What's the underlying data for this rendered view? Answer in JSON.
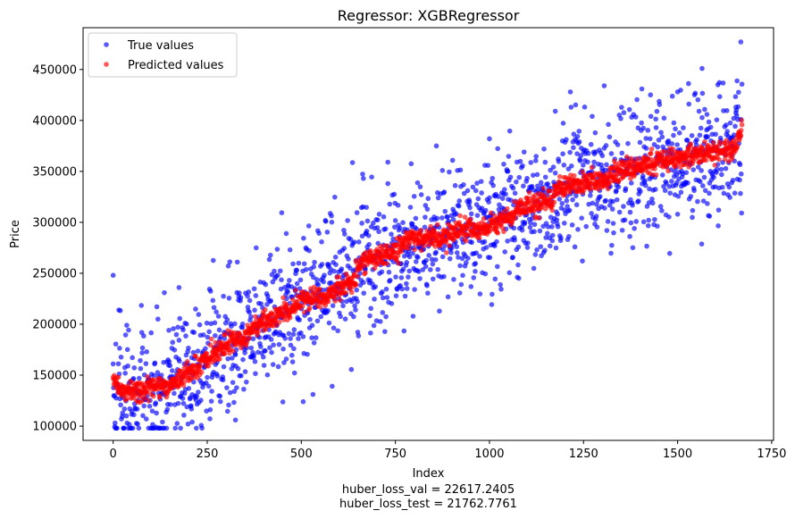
{
  "chart_data": {
    "type": "scatter",
    "title": "Regressor: XGBRegressor",
    "xlabel": "Index",
    "ylabel": "Price",
    "xlim": [
      -80,
      1755
    ],
    "ylim": [
      86000,
      491000
    ],
    "xticks": [
      0,
      250,
      500,
      750,
      1000,
      1250,
      1500,
      1750
    ],
    "yticks": [
      100000,
      150000,
      200000,
      250000,
      300000,
      350000,
      400000,
      450000
    ],
    "footer_lines": [
      "huber_loss_val = 22617.2405",
      "huber_loss_test = 21762.7761"
    ],
    "grid": false,
    "legend_position": "upper left",
    "series": [
      {
        "name": "True values",
        "color": "#0000ff",
        "opacity": 0.65,
        "n_points": 1672,
        "trend": [
          [
            0,
            125000
          ],
          [
            100,
            135000
          ],
          [
            200,
            155000
          ],
          [
            300,
            180000
          ],
          [
            400,
            205000
          ],
          [
            500,
            225000
          ],
          [
            600,
            240000
          ],
          [
            700,
            262000
          ],
          [
            800,
            280000
          ],
          [
            900,
            290000
          ],
          [
            1000,
            295000
          ],
          [
            1100,
            315000
          ],
          [
            1200,
            330000
          ],
          [
            1300,
            340000
          ],
          [
            1400,
            352000
          ],
          [
            1500,
            362000
          ],
          [
            1600,
            370000
          ],
          [
            1670,
            385000
          ]
        ],
        "spread": 32000,
        "highlights": [
          [
            0,
            248000
          ],
          [
            1668,
            477000
          ],
          [
            1565,
            451000
          ],
          [
            1215,
            428000
          ],
          [
            1305,
            434000
          ],
          [
            1500,
            428000
          ],
          [
            1607,
            435000
          ],
          [
            15,
            214000
          ],
          [
            175,
            236000
          ],
          [
            330,
            261000
          ],
          [
            380,
            275000
          ],
          [
            665,
            343000
          ],
          [
            730,
            359000
          ],
          [
            1175,
            409000
          ],
          [
            1655,
            413000
          ],
          [
            1585,
            306000
          ],
          [
            1000,
            382000
          ],
          [
            505,
            124000
          ],
          [
            325,
            106000
          ],
          [
            460,
            289000
          ],
          [
            210,
            104000
          ]
        ]
      },
      {
        "name": "Predicted values",
        "color": "#ff0000",
        "opacity": 0.65,
        "n_points": 1672,
        "trend": [
          [
            0,
            145000
          ],
          [
            25,
            135000
          ],
          [
            60,
            134000
          ],
          [
            100,
            137000
          ],
          [
            160,
            141000
          ],
          [
            200,
            153000
          ],
          [
            250,
            166000
          ],
          [
            300,
            180000
          ],
          [
            350,
            187000
          ],
          [
            380,
            199000
          ],
          [
            450,
            211000
          ],
          [
            500,
            224000
          ],
          [
            560,
            226000
          ],
          [
            600,
            237000
          ],
          [
            640,
            241000
          ],
          [
            660,
            264000
          ],
          [
            700,
            266000
          ],
          [
            760,
            272000
          ],
          [
            780,
            284000
          ],
          [
            880,
            285000
          ],
          [
            900,
            290000
          ],
          [
            1000,
            296000
          ],
          [
            1050,
            305000
          ],
          [
            1100,
            318000
          ],
          [
            1160,
            320000
          ],
          [
            1180,
            333000
          ],
          [
            1250,
            339000
          ],
          [
            1300,
            342000
          ],
          [
            1350,
            350000
          ],
          [
            1450,
            360000
          ],
          [
            1500,
            363000
          ],
          [
            1560,
            368000
          ],
          [
            1620,
            370000
          ],
          [
            1650,
            372000
          ],
          [
            1672,
            395000
          ]
        ],
        "spread": 5000
      }
    ]
  }
}
